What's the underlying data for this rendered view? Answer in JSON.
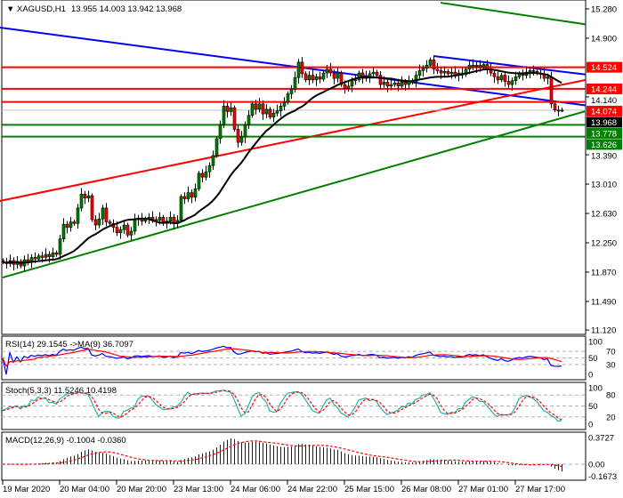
{
  "header": {
    "symbol_label": "XAGUSD,H1",
    "ohlc": "13.955 14.003 13.942 13.968",
    "menu_icon": "triangle-down-icon"
  },
  "colors": {
    "bull": "#008000",
    "bear": "#ff0000",
    "ma": "#000000",
    "blue_line": "#0000ff",
    "red_line": "#ff0000",
    "green_line": "#008000",
    "rsi": "#0000ff",
    "rsi_ma": "#ff0000",
    "stoch_main": "#20b2aa",
    "stoch_signal": "#ff0000",
    "macd_hist": "#0000ff",
    "macd_signal": "#ff0000"
  },
  "chart_data": [
    {
      "type": "candlestick",
      "symbol": "XAGUSD",
      "timeframe": "H1",
      "last_ohlc": {
        "open": 13.955,
        "high": 14.003,
        "low": 13.942,
        "close": 13.968
      },
      "ylim": [
        11.12,
        15.28
      ],
      "y_ticks": [
        "15.280",
        "14.900",
        "14.140",
        "13.390",
        "13.010",
        "12.630",
        "12.250",
        "11.870",
        "11.490",
        "11.120"
      ],
      "x_ticks": [
        "19 Mar 2020",
        "20 Mar 04:00",
        "20 Mar 20:00",
        "23 Mar 13:00",
        "24 Mar 06:00",
        "24 Mar 22:00",
        "25 Mar 15:00",
        "26 Mar 08:00",
        "27 Mar 01:00",
        "27 Mar 17:00"
      ],
      "closes": [
        12.0,
        11.98,
        12.02,
        11.97,
        12.01,
        11.95,
        12.03,
        12.0,
        12.06,
        12.04,
        12.08,
        12.06,
        12.1,
        12.07,
        12.12,
        12.1,
        12.3,
        12.49,
        12.45,
        12.52,
        12.5,
        12.7,
        12.88,
        12.83,
        12.86,
        12.55,
        12.48,
        12.56,
        12.7,
        12.52,
        12.5,
        12.45,
        12.38,
        12.42,
        12.48,
        12.35,
        12.4,
        12.55,
        12.57,
        12.53,
        12.56,
        12.58,
        12.55,
        12.54,
        12.58,
        12.5,
        12.53,
        12.58,
        12.5,
        12.54,
        12.85,
        12.82,
        12.9,
        12.84,
        12.95,
        13.15,
        13.1,
        13.17,
        13.25,
        13.38,
        13.6,
        13.78,
        14.02,
        13.95,
        14.0,
        13.72,
        13.55,
        13.62,
        13.78,
        13.9,
        14.05,
        13.98,
        14.05,
        13.92,
        13.98,
        13.88,
        13.93,
        13.96,
        14.02,
        14.07,
        14.18,
        14.24,
        14.39,
        14.59,
        14.44,
        14.36,
        14.42,
        14.36,
        14.4,
        14.37,
        14.45,
        14.5,
        14.45,
        14.38,
        14.45,
        14.3,
        14.25,
        14.28,
        14.35,
        14.36,
        14.45,
        14.38,
        14.4,
        14.44,
        14.46,
        14.42,
        14.3,
        14.33,
        14.28,
        14.3,
        14.32,
        14.28,
        14.33,
        14.3,
        14.35,
        14.33,
        14.42,
        14.48,
        14.51,
        14.55,
        14.62,
        14.5,
        14.48,
        14.45,
        14.47,
        14.44,
        14.46,
        14.42,
        14.45,
        14.43,
        14.5,
        14.55,
        14.53,
        14.55,
        14.52,
        14.56,
        14.5,
        14.45,
        14.4,
        14.36,
        14.42,
        14.34,
        14.3,
        14.35,
        14.4,
        14.44,
        14.42,
        14.46,
        14.48,
        14.47,
        14.45,
        14.44,
        14.38,
        14.4,
        14.05,
        13.97,
        13.955,
        13.968
      ],
      "horizontal_levels": [
        {
          "value": "14.524",
          "price": 14.524,
          "color": "#ff0000"
        },
        {
          "value": "14.244",
          "price": 14.244,
          "color": "#ff0000"
        },
        {
          "value": "14.074",
          "price": 14.074,
          "color": "#ff0000"
        },
        {
          "value": "13.778",
          "price": 13.778,
          "color": "#008000"
        },
        {
          "value": "13.626",
          "price": 13.626,
          "color": "#008000"
        }
      ],
      "current_price": {
        "value": "13.968",
        "price": 13.968
      },
      "trendlines": [
        {
          "color": "#0000ff",
          "from": {
            "bar": -1,
            "price": 15.04
          },
          "to": {
            "bar": 164,
            "price": 14.03
          }
        },
        {
          "color": "#0000ff",
          "from": {
            "bar": 121,
            "price": 14.67
          },
          "to": {
            "bar": 164,
            "price": 14.43
          }
        },
        {
          "color": "#ff0000",
          "from": {
            "bar": -1,
            "price": 12.79
          },
          "to": {
            "bar": 164,
            "price": 14.36
          }
        },
        {
          "color": "#008000",
          "from": {
            "bar": 0,
            "price": 11.8
          },
          "to": {
            "bar": 164,
            "price": 13.955
          }
        },
        {
          "color": "#008000",
          "from": {
            "bar": 123,
            "price": 15.36
          },
          "to": {
            "bar": 164,
            "price": 15.08
          }
        }
      ],
      "moving_average_period": 20
    },
    {
      "type": "line",
      "title": "RSI(14) 29.1545  ->MA(9) 36.7097",
      "ylim": [
        0,
        100
      ],
      "y_ticks": [
        "100",
        "70",
        "50",
        "30",
        "0"
      ],
      "levels": [
        70,
        50,
        30
      ],
      "period": 14,
      "ma_period": 9
    },
    {
      "type": "line",
      "title": "Stoch(5,3,3) 11.5246 10.4198",
      "ylim": [
        0,
        100
      ],
      "y_ticks": [
        "100",
        "80",
        "50",
        "20",
        "0"
      ],
      "levels": [
        80,
        50,
        20
      ]
    },
    {
      "type": "bar",
      "title": "MACD(12,26,9) -0.1004 -0.0360",
      "ylim": [
        -0.1673,
        0.3727
      ],
      "y_ticks": [
        "0.3727",
        "0.00",
        "-0.1673"
      ]
    }
  ]
}
